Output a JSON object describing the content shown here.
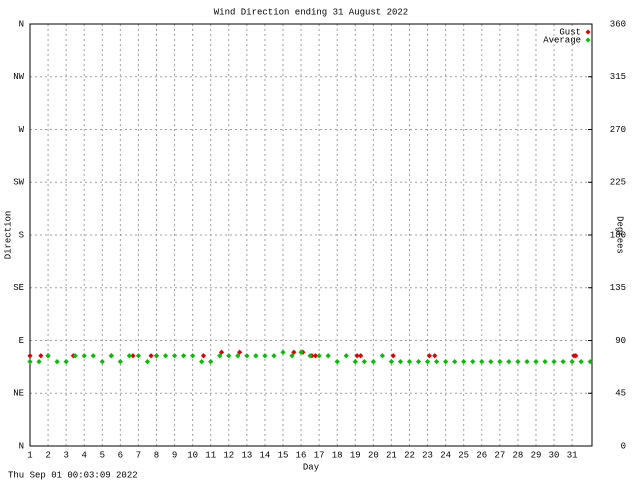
{
  "chart_data": {
    "type": "scatter",
    "title": "Wind Direction ending 31 August 2022",
    "x_label": "Day",
    "y_label": "Direction",
    "y2_label": "Degrees",
    "timestamp": "Thu Sep 01 00:03:09 2022",
    "xlim": [
      1,
      32.1
    ],
    "xticks": [
      1,
      2,
      3,
      4,
      5,
      6,
      7,
      8,
      9,
      10,
      11,
      12,
      13,
      14,
      15,
      16,
      17,
      18,
      19,
      20,
      21,
      22,
      23,
      24,
      25,
      26,
      27,
      28,
      29,
      30,
      31
    ],
    "ylim": [
      0,
      360
    ],
    "yticks": [
      {
        "value": 0,
        "label": "N"
      },
      {
        "value": 45,
        "label": "NE"
      },
      {
        "value": 90,
        "label": "E"
      },
      {
        "value": 135,
        "label": "SE"
      },
      {
        "value": 180,
        "label": "S"
      },
      {
        "value": 225,
        "label": "SW"
      },
      {
        "value": 270,
        "label": "W"
      },
      {
        "value": 315,
        "label": "NW"
      },
      {
        "value": 360,
        "label": "N"
      }
    ],
    "y2lim": [
      0,
      360
    ],
    "y2ticks": [
      0,
      45,
      90,
      135,
      180,
      225,
      270,
      315,
      360
    ],
    "grid": true,
    "legend": "top-right",
    "series": [
      {
        "name": "Gust",
        "color": "#e00000",
        "x": [
          1,
          1.6,
          2.0,
          3.4,
          5.5,
          6.7,
          7.7,
          8.0,
          10.6,
          11.6,
          12.6,
          15.6,
          16.1,
          16.6,
          16.8,
          19.1,
          19.3,
          21.1,
          23.1,
          23.4,
          31.1,
          31.2
        ],
        "values": [
          77,
          77,
          77,
          77,
          77,
          77,
          77,
          77,
          77,
          80,
          80,
          80,
          80,
          77,
          77,
          77,
          77,
          77,
          77,
          77,
          77,
          77
        ]
      },
      {
        "name": "Average",
        "color": "#00c000",
        "x": [
          1,
          1.5,
          2,
          2.5,
          3,
          3.5,
          4,
          4.5,
          5,
          5.5,
          6,
          6.5,
          7,
          7.5,
          8,
          8.5,
          9,
          9.5,
          10,
          10.5,
          11,
          11.5,
          12,
          12.5,
          13,
          13.5,
          14,
          14.5,
          15,
          15.5,
          16,
          16.5,
          17,
          17.5,
          18,
          18.5,
          19,
          19.5,
          20,
          20.5,
          21,
          21.5,
          22,
          22.5,
          23,
          23.5,
          24,
          24.5,
          25,
          25.5,
          26,
          26.5,
          27,
          27.5,
          28,
          28.5,
          29,
          29.5,
          30,
          30.5,
          31,
          31.5,
          32
        ],
        "values": [
          72,
          72,
          77,
          72,
          72,
          77,
          77,
          77,
          72,
          77,
          72,
          77,
          77,
          72,
          77,
          77,
          77,
          77,
          77,
          72,
          72,
          77,
          77,
          77,
          77,
          77,
          77,
          77,
          80,
          77,
          80,
          77,
          77,
          77,
          72,
          77,
          72,
          72,
          72,
          77,
          72,
          72,
          72,
          72,
          72,
          72,
          72,
          72,
          72,
          72,
          72,
          72,
          72,
          72,
          72,
          72,
          72,
          72,
          72,
          72,
          72,
          72,
          72
        ]
      }
    ]
  }
}
